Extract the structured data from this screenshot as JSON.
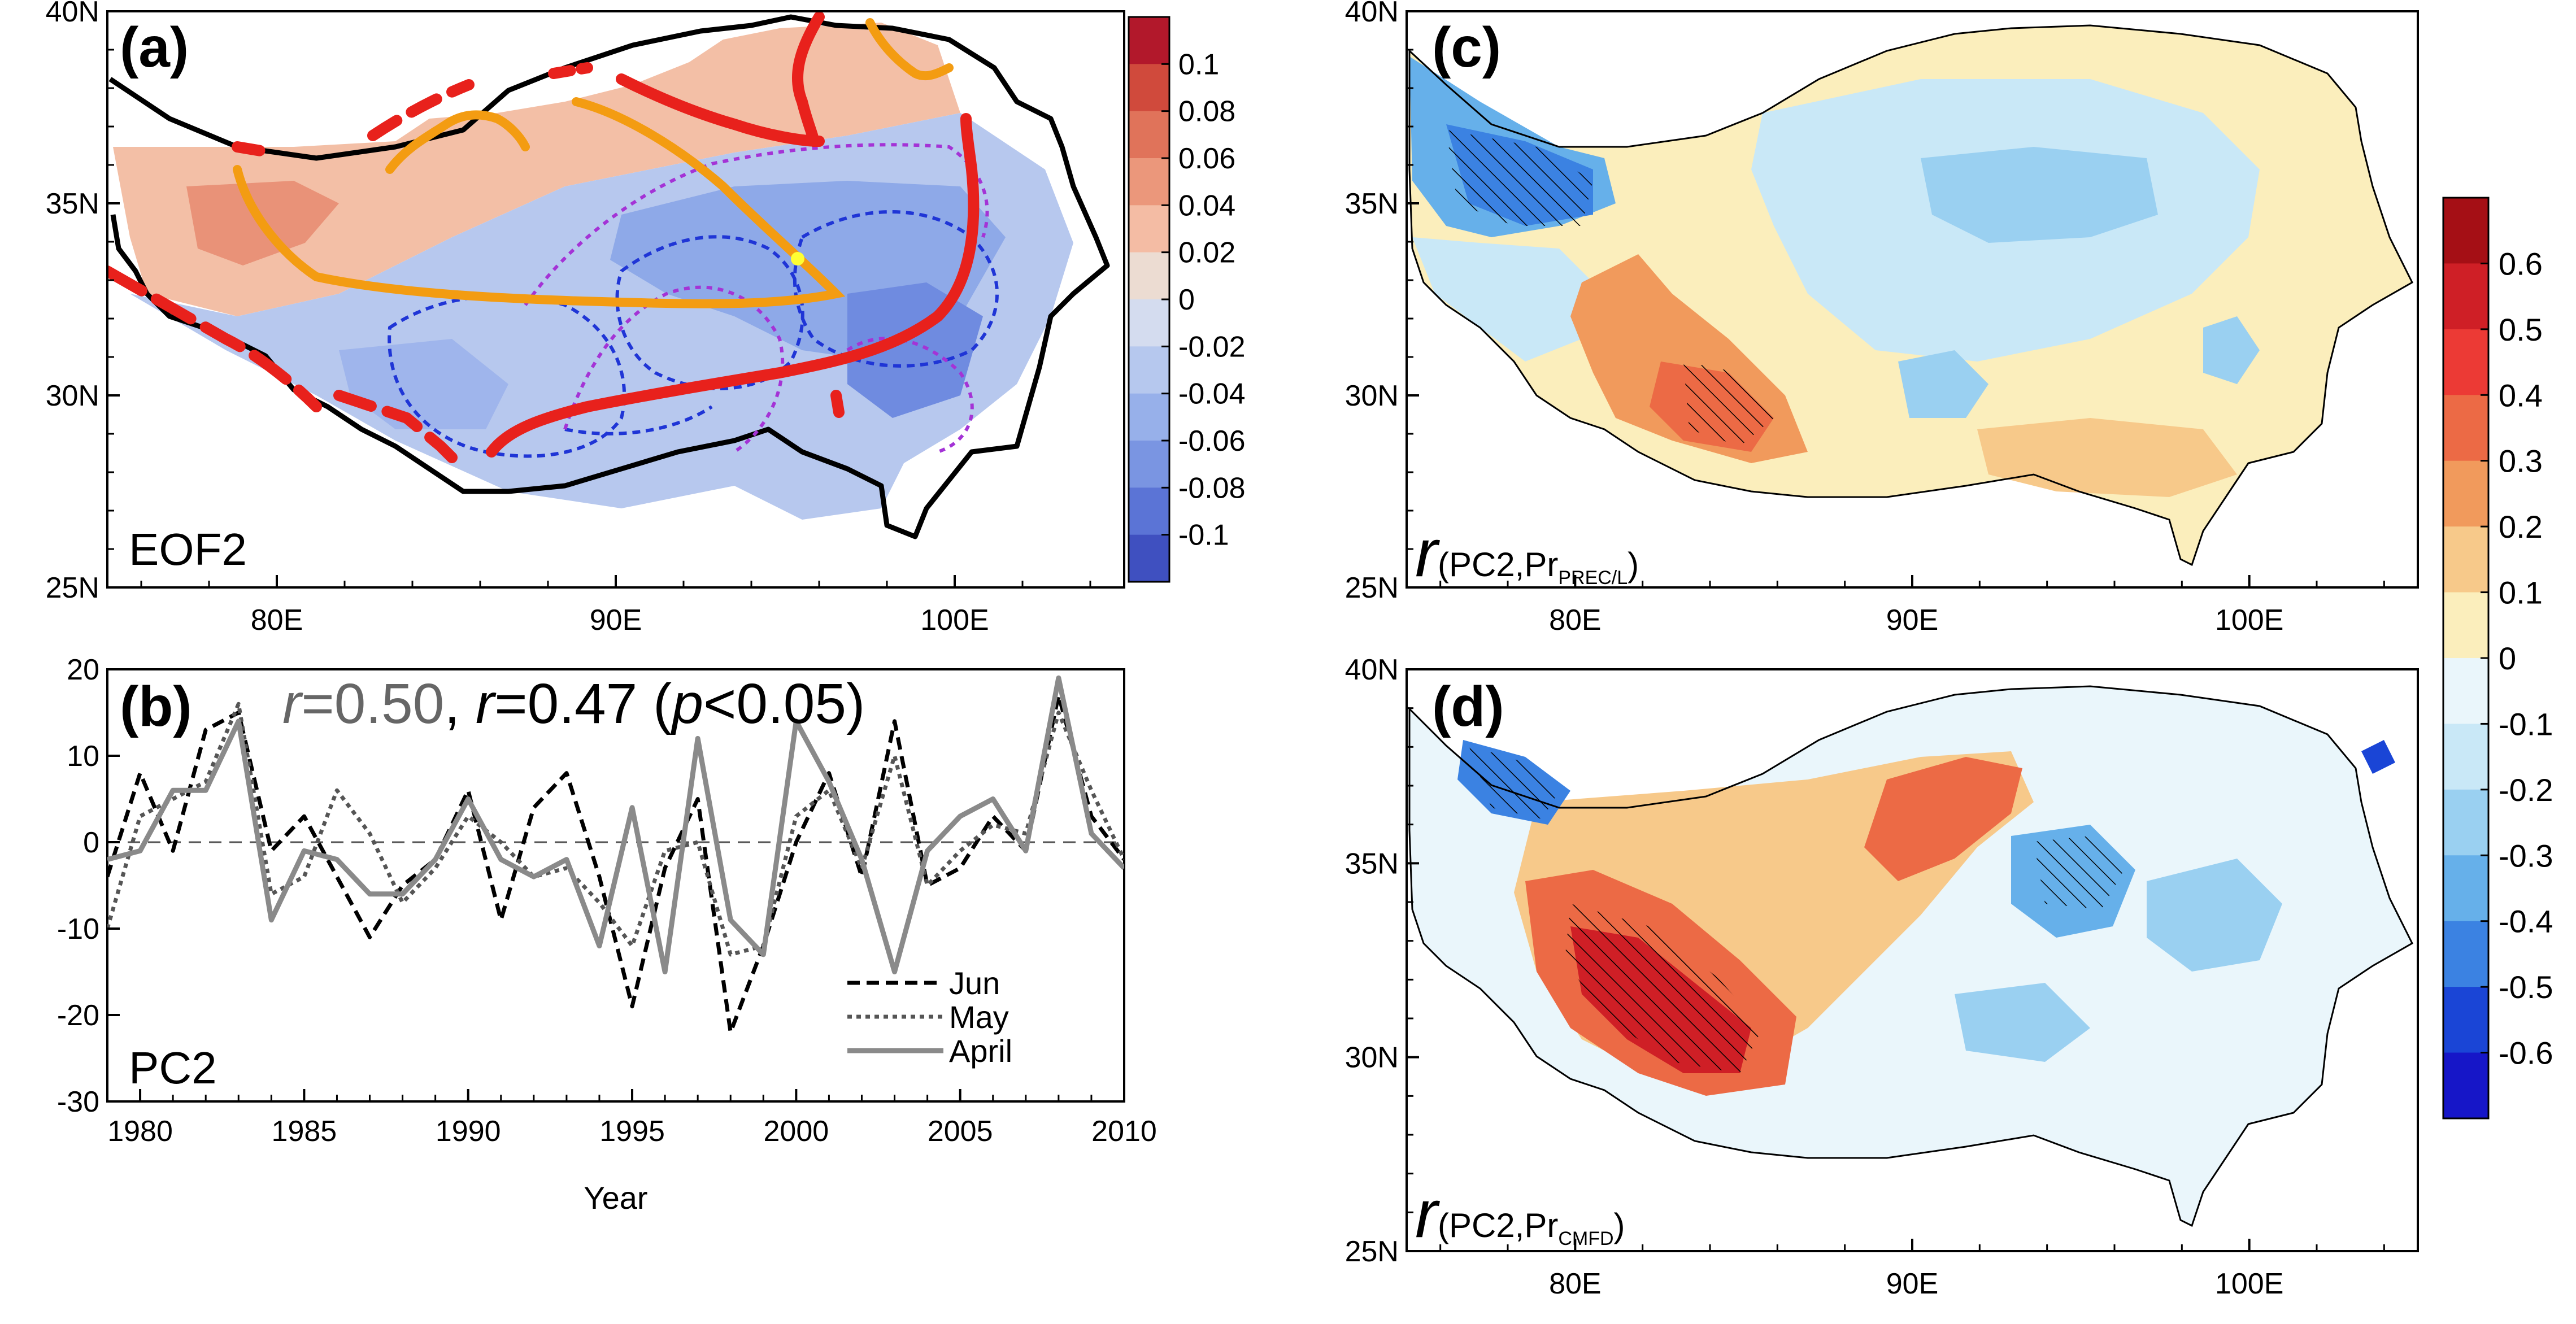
{
  "colors": {
    "frame": "#000000",
    "red_contour": "#e8211c",
    "orange_contour": "#f39c12",
    "blue_dashed": "#1f35d6",
    "purple_dashed": "#a433d6",
    "line_jun": "#000000",
    "line_may": "#555555",
    "line_april": "#8a8a8a",
    "label_r1": "#666666"
  },
  "chart_data": [
    {
      "id": "a",
      "type": "heatmap",
      "panel_label": "(a)",
      "inset_label": "EOF2",
      "title": "",
      "xlabel": "",
      "ylabel": "",
      "x_ticks": [
        "80E",
        "90E",
        "100E"
      ],
      "y_ticks": [
        "40N",
        "35N",
        "30N",
        "25N"
      ],
      "xlim": [
        75,
        105
      ],
      "ylim": [
        25,
        40
      ],
      "colorbar": {
        "labels": [
          "0.1",
          "0.08",
          "0.06",
          "0.04",
          "0.02",
          "0",
          "-0.02",
          "-0.04",
          "-0.06",
          "-0.08",
          "-0.1"
        ],
        "colors": [
          "#b2182b",
          "#d04a3c",
          "#e0735a",
          "#eb977b",
          "#f4bca4",
          "#ecdcd2",
          "#d4dcef",
          "#b6c8ee",
          "#97b0ea",
          "#7a95e2",
          "#5b74d6",
          "#3f50c0"
        ]
      }
    },
    {
      "id": "b",
      "type": "line",
      "panel_label": "(b)",
      "inset_label": "PC2",
      "annotation": {
        "r1_sym": "r",
        "r1_val": "=0.50",
        "sep": ", ",
        "r2_sym": "r",
        "r2_val": "=0.47",
        "paren_open": " (",
        "p_sym": "p",
        "p_val": "<0.05)"
      },
      "xlabel": "Year",
      "ylabel": "",
      "xlim": [
        1979,
        2010
      ],
      "ylim": [
        -30,
        20
      ],
      "x_ticks": [
        "1980",
        "1985",
        "1990",
        "1995",
        "2000",
        "2005",
        "2010"
      ],
      "y_ticks": [
        "20",
        "10",
        "0",
        "-10",
        "-20",
        "-30"
      ],
      "x": [
        1979,
        1980,
        1981,
        1982,
        1983,
        1984,
        1985,
        1986,
        1987,
        1988,
        1989,
        1990,
        1991,
        1992,
        1993,
        1994,
        1995,
        1996,
        1997,
        1998,
        1999,
        2000,
        2001,
        2002,
        2003,
        2004,
        2005,
        2006,
        2007,
        2008,
        2009,
        2010
      ],
      "series": [
        {
          "name": "Jun",
          "style": "dashed",
          "values": [
            -4,
            8,
            -1,
            13,
            15,
            -1,
            3,
            -4,
            -11,
            -5,
            -2,
            6,
            -9,
            4,
            8,
            -4,
            -19,
            -3,
            5,
            -22,
            -12,
            0,
            8,
            -4,
            14,
            -5,
            -3,
            3,
            -1,
            17,
            3,
            -2
          ]
        },
        {
          "name": "May",
          "style": "dotted",
          "values": [
            -10,
            3,
            5,
            7,
            16,
            -6,
            -4,
            6,
            1,
            -7,
            -3,
            3,
            0,
            -4,
            -3,
            -7,
            -12,
            -1,
            0,
            -13,
            -12,
            3,
            6,
            -3,
            10,
            -5,
            -1,
            2,
            1,
            15,
            6,
            -2
          ]
        },
        {
          "name": "April",
          "style": "solid",
          "values": [
            -2,
            -1,
            6,
            6,
            14,
            -9,
            -1,
            -2,
            -6,
            -6,
            -2,
            5,
            -2,
            -4,
            -2,
            -12,
            4,
            -15,
            12,
            -9,
            -13,
            14,
            7,
            -2,
            -15,
            -1,
            3,
            5,
            -1,
            19,
            1,
            -3
          ]
        }
      ]
    },
    {
      "id": "c",
      "type": "heatmap",
      "panel_label": "(c)",
      "inset_sym": "r",
      "inset_text": "(PC2,Pr",
      "inset_sub": "PREC/L",
      "inset_close": ")",
      "x_ticks": [
        "80E",
        "90E",
        "100E"
      ],
      "y_ticks": [
        "40N",
        "35N",
        "30N",
        "25N"
      ],
      "xlim": [
        75,
        105
      ],
      "ylim": [
        25,
        40
      ]
    },
    {
      "id": "d",
      "type": "heatmap",
      "panel_label": "(d)",
      "inset_sym": "r",
      "inset_text": "(PC2,Pr",
      "inset_sub": "CMFD",
      "inset_close": ")",
      "x_ticks": [
        "80E",
        "90E",
        "100E"
      ],
      "y_ticks": [
        "40N",
        "35N",
        "30N",
        "25N"
      ],
      "xlim": [
        75,
        105
      ],
      "ylim": [
        25,
        40
      ]
    },
    {
      "id": "cd_colorbar",
      "type": "heatmap",
      "colorbar": {
        "labels": [
          "0.6",
          "0.5",
          "0.4",
          "0.3",
          "0.2",
          "0.1",
          "0",
          "-0.1",
          "-0.2",
          "-0.3",
          "-0.4",
          "-0.5",
          "-0.6"
        ],
        "colors": [
          "#a50f15",
          "#cf1f26",
          "#ec3a35",
          "#ec6a45",
          "#f19a5c",
          "#f7c98a",
          "#fbeebc",
          "#eaf6fb",
          "#c9e8f7",
          "#9ad0f1",
          "#66b0ea",
          "#3b82e2",
          "#1a45d6",
          "#1616c8"
        ]
      }
    }
  ]
}
